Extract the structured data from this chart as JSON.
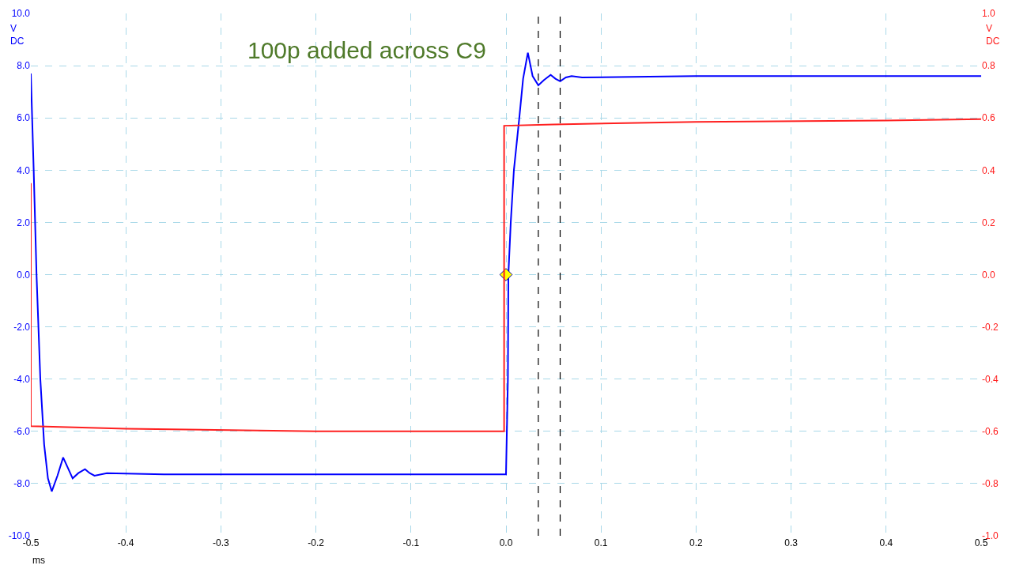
{
  "chart_data": {
    "type": "line",
    "xlabel": "ms",
    "ylabel": "V\nDC",
    "y2label": "V\nDC",
    "annotations": [
      "100p added across C9"
    ],
    "xlim": [
      -0.5,
      0.5
    ],
    "xticks": [
      -0.5,
      -0.4,
      -0.3,
      -0.2,
      -0.1,
      {
        "value": 0,
        "label": "0.0"
      },
      0.1,
      0.2,
      0.3,
      0.4,
      0.5
    ],
    "ylim": [
      -10,
      10
    ],
    "yticks": [
      {
        "value": -10,
        "label": "-10.0"
      },
      {
        "value": -8,
        "label": "-8.0"
      },
      {
        "value": -6,
        "label": "-6.0"
      },
      {
        "value": -4,
        "label": "-4.0"
      },
      {
        "value": -2,
        "label": "-2.0"
      },
      {
        "value": 0,
        "label": "0.0"
      },
      {
        "value": 2,
        "label": "2.0"
      },
      {
        "value": 4,
        "label": "4.0"
      },
      {
        "value": 6,
        "label": "6.0"
      },
      {
        "value": 8,
        "label": "8.0"
      },
      {
        "value": 10,
        "label": "10.0"
      }
    ],
    "y2lim": [
      -1,
      1
    ],
    "y2ticks": [
      {
        "value": -1,
        "label": "-1.0"
      },
      -0.8,
      -0.6,
      -0.4,
      -0.2,
      {
        "value": 0,
        "label": "0.0"
      },
      0.2,
      0.4,
      0.6,
      0.8,
      {
        "value": 1,
        "label": "1.0"
      }
    ],
    "grid": true,
    "marker": "none",
    "line_style": "solid",
    "ref_lines": [
      {
        "axis": "x",
        "value": 0.034,
        "color": "#000000",
        "line_style": "dashed"
      },
      {
        "axis": "x",
        "value": 0.057,
        "color": "#000000",
        "line_style": "dashed"
      }
    ],
    "series": [
      {
        "color": "#0000ff",
        "x": [
          -0.5,
          -0.497,
          -0.494,
          -0.49,
          -0.486,
          -0.482,
          -0.478,
          -0.472,
          -0.466,
          -0.461,
          -0.456,
          -0.45,
          -0.443,
          -0.438,
          -0.433,
          -0.42,
          -0.36,
          -0.2,
          0.0,
          0.002,
          0.0025,
          0.005,
          0.0083,
          0.014,
          0.018,
          0.023,
          0.028,
          0.034,
          0.04,
          0.047,
          0.052,
          0.057,
          0.063,
          0.069,
          0.08,
          0.2,
          0.35,
          0.5
        ],
        "values": [
          7.7,
          4,
          0,
          -4,
          -6.5,
          -7.8,
          -8.3,
          -7.7,
          -7.0,
          -7.4,
          -7.8,
          -7.6,
          -7.45,
          -7.6,
          -7.7,
          -7.6,
          -7.65,
          -7.65,
          -7.65,
          -4,
          0,
          2,
          4,
          6,
          7.5,
          8.5,
          7.6,
          7.25,
          7.45,
          7.65,
          7.5,
          7.4,
          7.55,
          7.6,
          7.55,
          7.6,
          7.6,
          7.6
        ]
      },
      {
        "color": "#ff2020",
        "axis": "y2",
        "x": [
          -0.5,
          -0.5,
          -0.4,
          -0.2,
          -0.002,
          -0.002,
          0.05,
          0.2,
          0.4,
          0.5
        ],
        "values": [
          0.35,
          -0.58,
          -0.59,
          -0.6,
          -0.6,
          0.57,
          0.575,
          0.585,
          0.59,
          0.595
        ]
      },
      {
        "type": "scatter",
        "marker": "diamond",
        "color": "#ffff00",
        "x": [
          0
        ],
        "values": [
          0
        ]
      }
    ]
  }
}
